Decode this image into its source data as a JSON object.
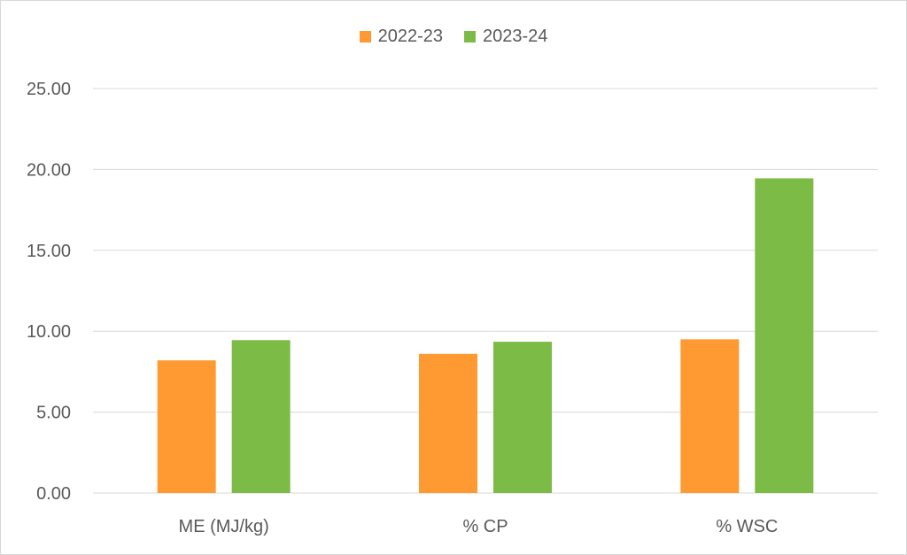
{
  "chart_data": {
    "type": "bar",
    "categories": [
      "ME (MJ/kg)",
      "% CP",
      "% WSC"
    ],
    "series": [
      {
        "name": "2022-23",
        "color": "#ff9a33",
        "values": [
          8.2,
          8.6,
          9.5
        ]
      },
      {
        "name": "2023-24",
        "color": "#7dbb47",
        "values": [
          9.45,
          9.35,
          19.45
        ]
      }
    ],
    "yticks": [
      "0.00",
      "5.00",
      "10.00",
      "15.00",
      "20.00",
      "25.00"
    ],
    "ylim": [
      0,
      25
    ],
    "grid": true,
    "legend_position": "top-center",
    "gridline_color": "#d9d9d9"
  }
}
